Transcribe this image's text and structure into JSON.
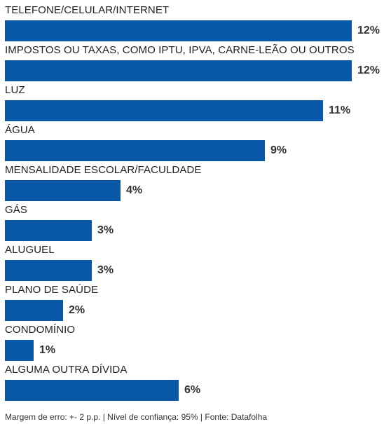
{
  "chart_data": {
    "type": "bar",
    "orientation": "horizontal",
    "categories": [
      "TELEFONE/CELULAR/INTERNET",
      "IMPOSTOS OU TAXAS, COMO IPTU, IPVA, CARNE-LEÃO OU OUTROS",
      "LUZ",
      "ÁGUA",
      "MENSALIDADE ESCOLAR/FACULDADE",
      "GÁS",
      "ALUGUEL",
      "PLANO DE SAÚDE",
      "CONDOMÍNIO",
      "ALGUMA OUTRA DÍVIDA"
    ],
    "values": [
      12,
      12,
      11,
      9,
      4,
      3,
      3,
      2,
      1,
      6
    ],
    "value_labels": [
      "12%",
      "12%",
      "11%",
      "9%",
      "4%",
      "3%",
      "3%",
      "2%",
      "1%",
      "6%"
    ],
    "unit": "%",
    "xlim": [
      0,
      12
    ],
    "grid": false,
    "bar_color": "#0a58a8"
  },
  "footnote": "Margem de erro: +- 2 p.p. | Nível de confiança: 95% | Fonte: Datafolha"
}
